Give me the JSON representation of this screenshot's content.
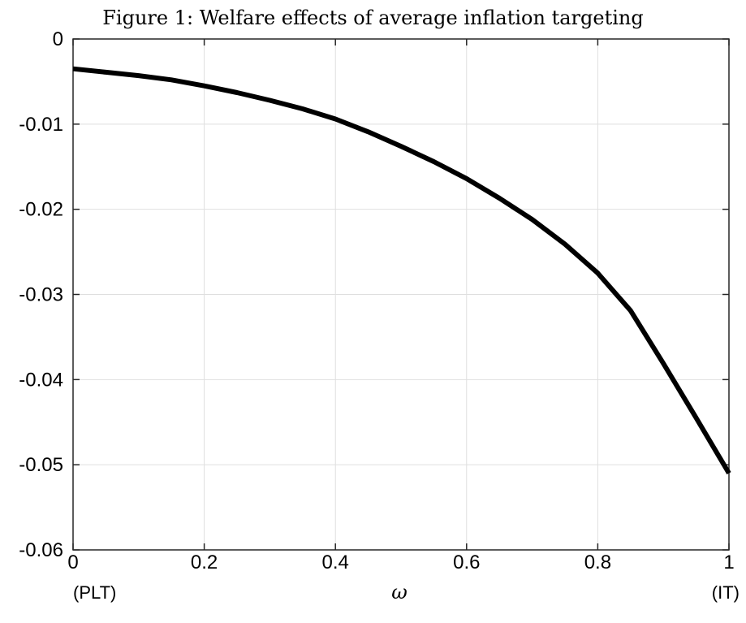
{
  "chart_data": {
    "type": "line",
    "title": "Figure 1: Welfare effects of average inflation targeting",
    "xlabel": "ω",
    "ylabel": "",
    "xlim": [
      0,
      1
    ],
    "ylim": [
      -0.06,
      0
    ],
    "grid": true,
    "x_ticks": [
      0,
      0.2,
      0.4,
      0.6,
      0.8,
      1
    ],
    "x_tick_labels": [
      "0",
      "0.2",
      "0.4",
      "0.6",
      "0.8",
      "1"
    ],
    "y_ticks": [
      0,
      -0.01,
      -0.02,
      -0.03,
      -0.04,
      -0.05,
      -0.06
    ],
    "y_tick_labels": [
      "0",
      "-0.01",
      "-0.02",
      "-0.03",
      "-0.04",
      "-0.05",
      "-0.06"
    ],
    "annotations": {
      "left": "(PLT)",
      "right": "(IT)"
    },
    "line_color": "#000000",
    "series": [
      {
        "x": [
          0,
          0.05,
          0.1,
          0.15,
          0.2,
          0.25,
          0.3,
          0.35,
          0.4,
          0.45,
          0.5,
          0.55,
          0.6,
          0.65,
          0.7,
          0.75,
          0.8,
          0.85,
          0.9,
          0.95,
          1.0
        ],
        "y": [
          -0.0035,
          -0.0039,
          -0.0043,
          -0.0048,
          -0.0055,
          -0.0063,
          -0.0072,
          -0.0082,
          -0.0094,
          -0.0109,
          -0.0126,
          -0.0144,
          -0.0164,
          -0.0187,
          -0.0212,
          -0.0241,
          -0.0275,
          -0.0319,
          -0.0381,
          -0.0445,
          -0.051
        ]
      }
    ]
  }
}
